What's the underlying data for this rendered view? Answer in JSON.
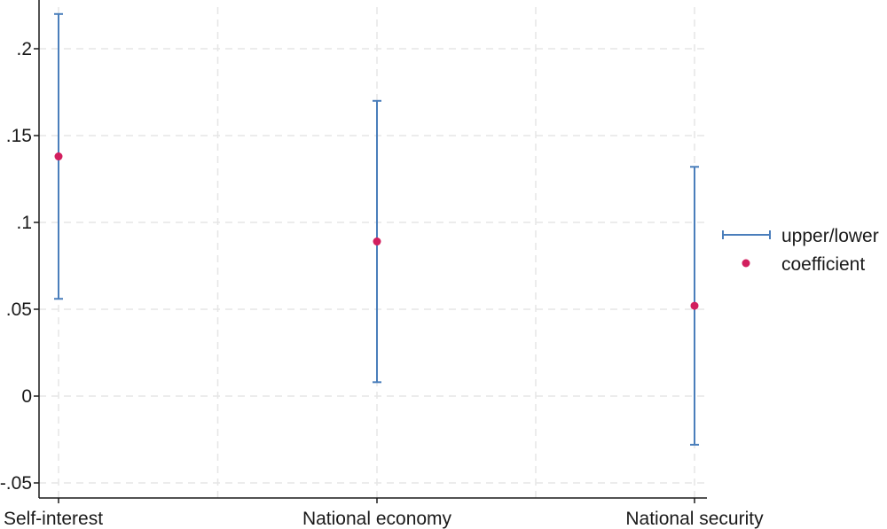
{
  "chart_data": {
    "type": "scatter",
    "title": "",
    "xlabel": "",
    "ylabel": "",
    "categories": [
      "Self-interest",
      "National economy",
      "National security"
    ],
    "series": [
      {
        "name": "upper/lower",
        "kind": "errorbar",
        "upper": [
          0.22,
          0.17,
          0.132
        ],
        "lower": [
          0.056,
          0.008,
          -0.028
        ]
      },
      {
        "name": "coefficient",
        "kind": "point",
        "values": [
          0.138,
          0.089,
          0.052
        ]
      }
    ],
    "yticks": [
      -0.05,
      0,
      0.05,
      0.1,
      0.15,
      0.2
    ],
    "ytick_labels": [
      "-.05",
      "0",
      ".05",
      ".1",
      ".15",
      ".2"
    ],
    "ylim": [
      -0.057,
      0.225
    ],
    "grid": true,
    "legend_position": "right",
    "colors": {
      "errorbar": "#4a7ebb",
      "point": "#d21f5e",
      "grid": "#e6e6e6",
      "axis": "#1a1a1a"
    }
  }
}
